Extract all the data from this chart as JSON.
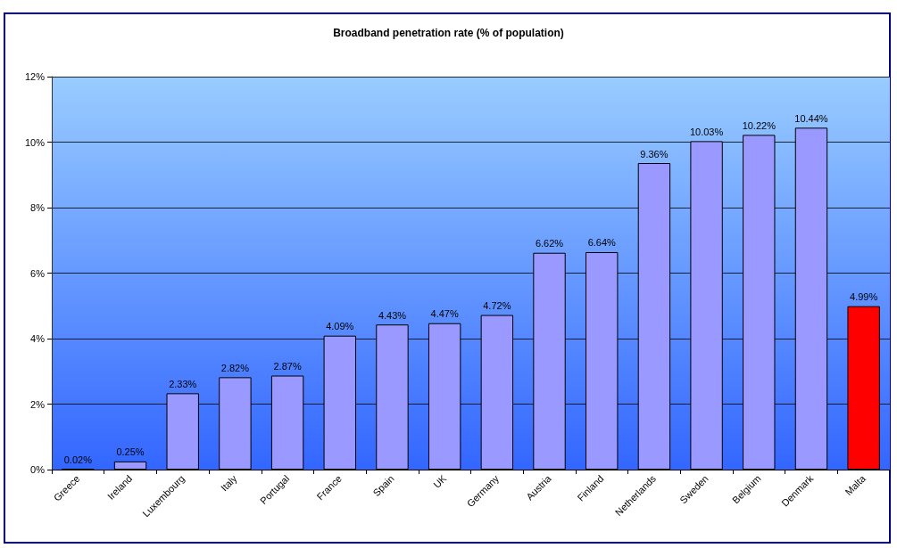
{
  "chart_data": {
    "type": "bar",
    "title": "Broadband penetration rate (% of population)",
    "categories": [
      "Greece",
      "Ireland",
      "Luxembourg",
      "Italy",
      "Portugal",
      "France",
      "Spain",
      "UK",
      "Germany",
      "Austria",
      "Finland",
      "Netherlands",
      "Sweden",
      "Belgium",
      "Denmark",
      "Malta"
    ],
    "values": [
      0.02,
      0.25,
      2.33,
      2.82,
      2.87,
      4.09,
      4.43,
      4.47,
      4.72,
      6.62,
      6.64,
      9.36,
      10.03,
      10.22,
      10.44,
      4.99
    ],
    "value_labels": [
      "0.02%",
      "0.25%",
      "2.33%",
      "2.82%",
      "2.87%",
      "4.09%",
      "4.43%",
      "4.47%",
      "4.72%",
      "6.62%",
      "6.64%",
      "9.36%",
      "10.03%",
      "10.22%",
      "10.44%",
      "4.99%"
    ],
    "colors": [
      "#000000",
      "#9999ff",
      "#9999ff",
      "#9999ff",
      "#9999ff",
      "#9999ff",
      "#9999ff",
      "#9999ff",
      "#9999ff",
      "#9999ff",
      "#9999ff",
      "#9999ff",
      "#9999ff",
      "#9999ff",
      "#9999ff",
      "#ff0000"
    ],
    "ylim": [
      0,
      12
    ],
    "yticks": [
      {
        "value": 0,
        "label": "0%"
      },
      {
        "value": 2,
        "label": "2%"
      },
      {
        "value": 4,
        "label": "4%"
      },
      {
        "value": 6,
        "label": "6%"
      },
      {
        "value": 8,
        "label": "8%"
      },
      {
        "value": 10,
        "label": "10%"
      },
      {
        "value": 12,
        "label": "12%"
      }
    ],
    "grid": "y"
  }
}
